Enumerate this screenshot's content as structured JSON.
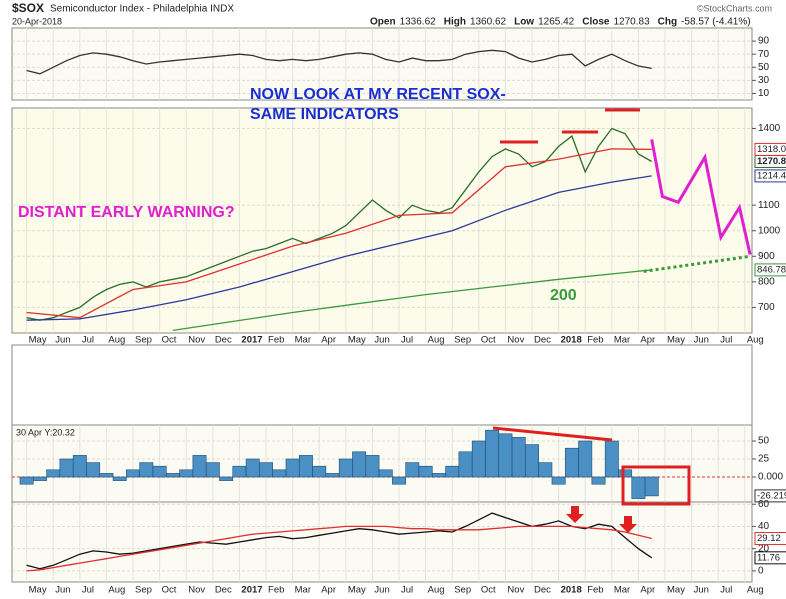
{
  "chart_data": [
    {
      "type": "line",
      "title": "$SOX",
      "subtitle": "Semiconductor Index - Philadelphia INDX",
      "date": "20-Apr-2018",
      "source": "©StockCharts.com",
      "quote": [
        {
          "label": "Open",
          "value": 1336.62
        },
        {
          "label": "High",
          "value": 1360.62
        },
        {
          "label": "Low",
          "value": 1265.42
        },
        {
          "label": "Close",
          "value": 1270.83
        },
        {
          "label": "Chg",
          "value": "-58.57 (-4.41%)"
        }
      ],
      "annotations": [
        "NOW LOOK AT MY RECENT SOX-",
        "SAME INDICATORS",
        "DISTANT EARLY WARNING?",
        "200"
      ],
      "xlim": [
        -0.55,
        27.27
      ],
      "xticks": [
        {
          "value": 0,
          "label": "May"
        },
        {
          "value": 1,
          "label": "Jun"
        },
        {
          "value": 2,
          "label": "Jul"
        },
        {
          "value": 3,
          "label": "Aug"
        },
        {
          "value": 4,
          "label": "Sep"
        },
        {
          "value": 5,
          "label": "Oct"
        },
        {
          "value": 6,
          "label": "Nov"
        },
        {
          "value": 7,
          "label": "Dec"
        },
        {
          "value": 8,
          "label": "2017"
        },
        {
          "value": 9,
          "label": "Feb"
        },
        {
          "value": 10,
          "label": "Mar"
        },
        {
          "value": 11,
          "label": "Apr"
        },
        {
          "value": 12,
          "label": "May"
        },
        {
          "value": 13,
          "label": "Jun"
        },
        {
          "value": 14,
          "label": "Jul"
        },
        {
          "value": 15,
          "label": "Aug"
        },
        {
          "value": 16,
          "label": "Sep"
        },
        {
          "value": 17,
          "label": "Oct"
        },
        {
          "value": 18,
          "label": "Nov"
        },
        {
          "value": 19,
          "label": "Dec"
        },
        {
          "value": 20,
          "label": "2018"
        },
        {
          "value": 21,
          "label": "Feb"
        },
        {
          "value": 22,
          "label": "Mar"
        },
        {
          "value": 23,
          "label": "Apr"
        },
        {
          "value": 24,
          "label": "May"
        },
        {
          "value": 25,
          "label": "Jun"
        },
        {
          "value": 26,
          "label": "Jul"
        },
        {
          "value": 27,
          "label": "Aug"
        }
      ],
      "x": [
        0,
        0.5,
        1,
        1.5,
        2,
        2.5,
        3,
        3.5,
        4,
        4.5,
        5,
        5.5,
        6,
        6.5,
        7,
        7.5,
        8,
        8.5,
        9,
        9.5,
        10,
        10.5,
        11,
        11.5,
        12,
        12.5,
        13,
        13.5,
        14,
        14.5,
        15,
        15.5,
        16,
        16.5,
        17,
        17.5,
        18,
        18.5,
        19,
        19.5,
        20,
        20.5,
        21,
        21.5,
        22,
        22.5,
        23,
        23.5
      ],
      "ylim": [
        600,
        1480
      ],
      "yticks": [
        700,
        800,
        900,
        1000,
        1100,
        1400
      ],
      "grid": true,
      "series": [
        {
          "color": "#2a6e2a",
          "end_label": "1270.8",
          "values": [
            660,
            650,
            660,
            680,
            700,
            740,
            770,
            790,
            800,
            780,
            800,
            810,
            820,
            840,
            860,
            880,
            900,
            920,
            930,
            950,
            970,
            950,
            970,
            990,
            1020,
            1070,
            1120,
            1080,
            1050,
            1100,
            1080,
            1070,
            1090,
            1160,
            1230,
            1290,
            1320,
            1300,
            1250,
            1270,
            1330,
            1370,
            1230,
            1330,
            1400,
            1380,
            1300,
            1270.83
          ]
        },
        {
          "color": "#e03030",
          "end_label": "1318.0",
          "x": [
            0,
            2,
            4,
            6,
            8,
            10,
            12,
            14,
            16,
            18,
            20,
            22,
            23.5
          ],
          "values": [
            680,
            660,
            770,
            800,
            870,
            940,
            990,
            1060,
            1070,
            1250,
            1280,
            1320,
            1318.0
          ]
        },
        {
          "color": "#2a3a9a",
          "end_label": "1214.4",
          "x": [
            0,
            2,
            4,
            6,
            8,
            10,
            12,
            14,
            16,
            18,
            20,
            22,
            23.5
          ],
          "values": [
            650,
            655,
            690,
            730,
            780,
            840,
            900,
            950,
            1000,
            1080,
            1150,
            1190,
            1214.4
          ]
        },
        {
          "color": "#3a9a3a",
          "end_label": "846.78",
          "x": [
            5.5,
            10,
            15,
            20,
            23.5
          ],
          "values": [
            610,
            680,
            750,
            810,
            846.78
          ]
        },
        {
          "color": "#e020d0",
          "width": 3,
          "x": [
            23.5,
            23.9,
            24.5,
            25.5,
            26.1,
            26.8,
            27.2
          ],
          "values": [
            1357,
            1134,
            1111,
            1287,
            974,
            1091,
            907
          ]
        },
        {
          "color": "#3a9a3a",
          "width": 3,
          "style": "dotted",
          "x": [
            23.2,
            27.2
          ],
          "values": [
            841,
            900
          ]
        }
      ]
    },
    {
      "type": "line",
      "ylim": [
        0,
        110
      ],
      "yticks": [
        10,
        30,
        50,
        70,
        90
      ],
      "grid": true,
      "series": [
        {
          "color": "#333333",
          "values": [
            45,
            40,
            50,
            60,
            68,
            72,
            70,
            66,
            60,
            55,
            58,
            60,
            62,
            64,
            66,
            68,
            70,
            68,
            62,
            60,
            62,
            60,
            62,
            66,
            70,
            72,
            70,
            62,
            58,
            64,
            60,
            60,
            62,
            70,
            74,
            76,
            74,
            64,
            58,
            62,
            68,
            70,
            52,
            62,
            70,
            60,
            52,
            48.24
          ]
        }
      ]
    },
    {
      "type": "bar",
      "title": "30 Apr Y:20.32",
      "ylim": [
        -34.7,
        72.2
      ],
      "yticks": [
        {
          "value": 0,
          "label": "0.000"
        },
        25,
        50
      ],
      "grid": true,
      "color": "#4a90c4",
      "end_label": "-26.219",
      "values": [
        -10,
        -5,
        10,
        25,
        30,
        20,
        5,
        -5,
        10,
        20,
        15,
        5,
        10,
        30,
        20,
        -5,
        15,
        25,
        20,
        10,
        25,
        30,
        15,
        5,
        25,
        35,
        30,
        10,
        -10,
        20,
        15,
        5,
        15,
        35,
        50,
        65,
        60,
        55,
        45,
        20,
        -10,
        40,
        50,
        -10,
        50,
        10,
        -30,
        -26.219
      ]
    },
    {
      "type": "line",
      "ylim": [
        -10,
        62
      ],
      "yticks": [
        0,
        20,
        40,
        60
      ],
      "grid": true,
      "series": [
        {
          "color": "#111111",
          "end_label": "11.76",
          "values": [
            5,
            2,
            5,
            10,
            15,
            18,
            17,
            15,
            16,
            18,
            20,
            22,
            24,
            26,
            25,
            24,
            26,
            28,
            30,
            31,
            29,
            30,
            32,
            34,
            36,
            38,
            37,
            35,
            33,
            34,
            35,
            36,
            35,
            40,
            46,
            52,
            48,
            44,
            40,
            42,
            45,
            40,
            38,
            42,
            40,
            30,
            20,
            11.76
          ]
        },
        {
          "color": "#e03030",
          "end_label": "29.12",
          "values": [
            0,
            1,
            3,
            5,
            7,
            9,
            11,
            13,
            15,
            17,
            19,
            21,
            23,
            25,
            27,
            29,
            31,
            33,
            34,
            35,
            36,
            37,
            38,
            39,
            40,
            40,
            40,
            40,
            39,
            38,
            38,
            37,
            37,
            37,
            37,
            38,
            39,
            40,
            40,
            40,
            40,
            40,
            39,
            38,
            37,
            35,
            32,
            29.12
          ]
        }
      ]
    }
  ]
}
